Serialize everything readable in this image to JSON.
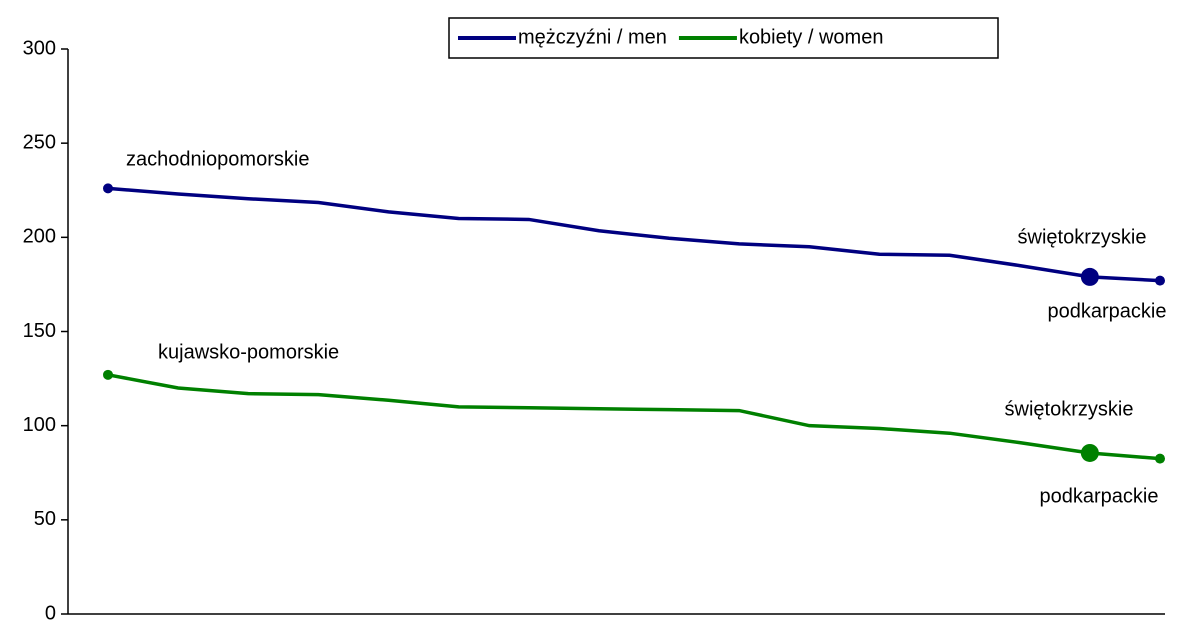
{
  "chart_data": {
    "type": "line",
    "categories": [
      null,
      null,
      null,
      null,
      null,
      null,
      null,
      null,
      null,
      null,
      null,
      null,
      null,
      null,
      null,
      null
    ],
    "series": [
      {
        "name": "mężczyźni / men",
        "color": "#000080",
        "values": [
          226,
          223,
          220.5,
          218.5,
          213.5,
          210,
          209.5,
          203.5,
          199.5,
          196.5,
          195,
          191,
          190.5,
          185,
          179,
          177
        ]
      },
      {
        "name": "kobiety / women",
        "color": "#008000",
        "values": [
          127,
          120,
          117,
          116.5,
          113.5,
          110,
          109.5,
          109,
          108.5,
          108,
          100,
          98.5,
          96,
          91,
          85.5,
          82.5
        ]
      }
    ],
    "annotations": [
      "zachodniopomorskie",
      "świętokrzyskie",
      "podkarpackie",
      "kujawsko-pomorskie",
      "świętokrzyskie",
      "podkarpackie"
    ],
    "ylim": [
      0,
      300
    ],
    "yticks": [
      0,
      50,
      100,
      150,
      200,
      250,
      300
    ],
    "grid": false,
    "legend": "top"
  }
}
